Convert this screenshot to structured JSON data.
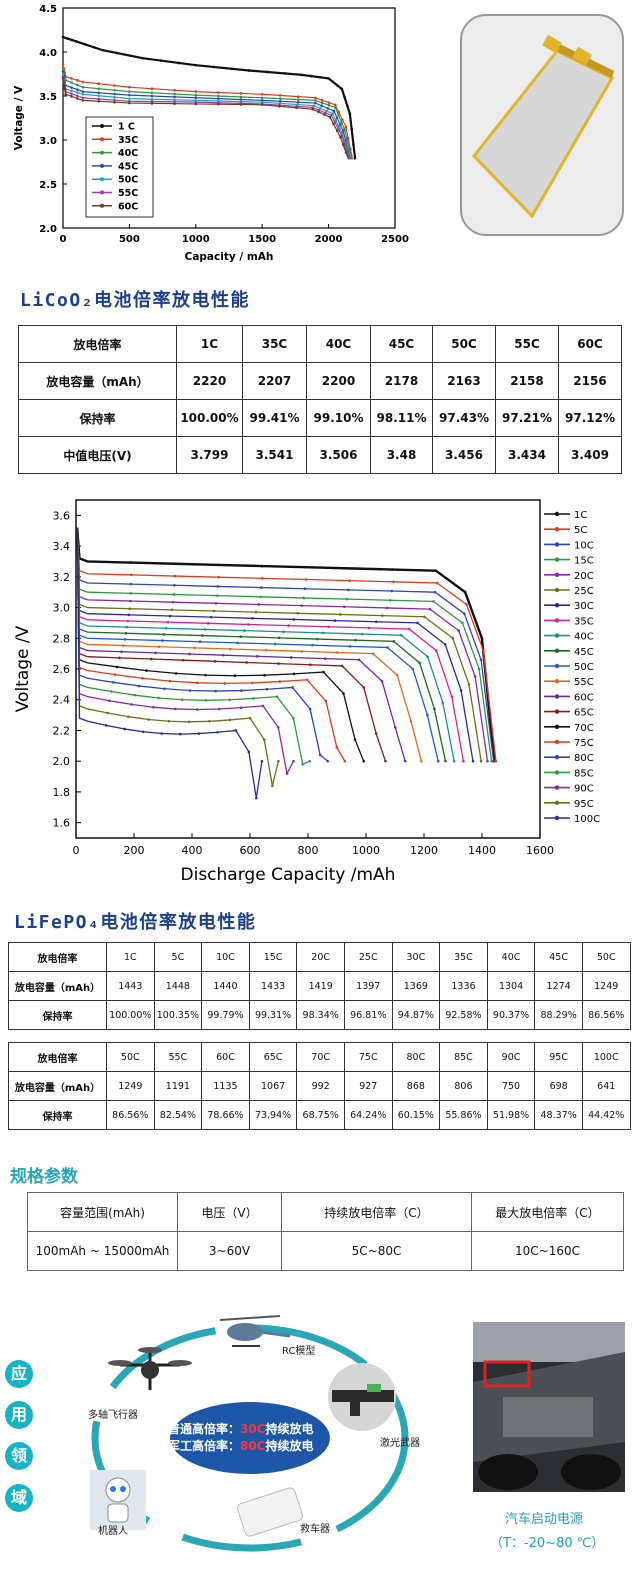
{
  "licoo2": {
    "title": "LiCoO₂电池倍率放电性能",
    "chart_data": {
      "type": "line",
      "xlabel": "Capacity / mAh",
      "ylabel": "Voltage / V",
      "xlim": [
        0,
        2500
      ],
      "ylim": [
        2.0,
        4.5
      ],
      "x_ticks": [
        "0",
        "500",
        "1000",
        "1500",
        "2000",
        "2500"
      ],
      "y_ticks": [
        "2.0",
        "2.5",
        "3.0",
        "3.5",
        "4.0",
        "4.5"
      ],
      "legend_position": "bottom-left",
      "series": [
        {
          "name": "1 C",
          "color": "#111111",
          "points": [
            [
              0,
              4.17
            ],
            [
              100,
              4.12
            ],
            [
              300,
              4.02
            ],
            [
              600,
              3.93
            ],
            [
              1000,
              3.85
            ],
            [
              1400,
              3.79
            ],
            [
              1800,
              3.74
            ],
            [
              2000,
              3.7
            ],
            [
              2100,
              3.58
            ],
            [
              2160,
              3.3
            ],
            [
              2200,
              2.78
            ]
          ]
        },
        {
          "name": "35C",
          "color": "#e03a1e",
          "points": [
            [
              0,
              3.86
            ],
            [
              20,
              3.72
            ],
            [
              150,
              3.66
            ],
            [
              500,
              3.6
            ],
            [
              1000,
              3.55
            ],
            [
              1500,
              3.52
            ],
            [
              1900,
              3.48
            ],
            [
              2050,
              3.4
            ],
            [
              2130,
              3.15
            ],
            [
              2180,
              2.78
            ]
          ]
        },
        {
          "name": "40C",
          "color": "#2f9a3a",
          "points": [
            [
              0,
              3.82
            ],
            [
              20,
              3.68
            ],
            [
              150,
              3.6
            ],
            [
              500,
              3.55
            ],
            [
              1000,
              3.51
            ],
            [
              1500,
              3.48
            ],
            [
              1900,
              3.45
            ],
            [
              2050,
              3.37
            ],
            [
              2120,
              3.12
            ],
            [
              2175,
              2.78
            ]
          ]
        },
        {
          "name": "45C",
          "color": "#2b48b8",
          "points": [
            [
              0,
              3.78
            ],
            [
              20,
              3.62
            ],
            [
              150,
              3.55
            ],
            [
              500,
              3.51
            ],
            [
              1000,
              3.48
            ],
            [
              1500,
              3.45
            ],
            [
              1900,
              3.42
            ],
            [
              2040,
              3.33
            ],
            [
              2110,
              3.1
            ],
            [
              2165,
              2.78
            ]
          ]
        },
        {
          "name": "50C",
          "color": "#22a6b8",
          "points": [
            [
              0,
              3.75
            ],
            [
              20,
              3.58
            ],
            [
              150,
              3.52
            ],
            [
              500,
              3.47
            ],
            [
              1000,
              3.45
            ],
            [
              1500,
              3.43
            ],
            [
              1890,
              3.39
            ],
            [
              2030,
              3.3
            ],
            [
              2100,
              3.08
            ],
            [
              2160,
              2.78
            ]
          ]
        },
        {
          "name": "55C",
          "color": "#a23b98",
          "points": [
            [
              0,
              3.72
            ],
            [
              20,
              3.55
            ],
            [
              150,
              3.48
            ],
            [
              500,
              3.44
            ],
            [
              1000,
              3.43
            ],
            [
              1500,
              3.41
            ],
            [
              1880,
              3.37
            ],
            [
              2020,
              3.28
            ],
            [
              2100,
              3.05
            ],
            [
              2155,
              2.78
            ]
          ]
        },
        {
          "name": "60C",
          "color": "#6b3a1f",
          "points": [
            [
              0,
              3.7
            ],
            [
              20,
              3.52
            ],
            [
              150,
              3.45
            ],
            [
              500,
              3.42
            ],
            [
              1000,
              3.41
            ],
            [
              1500,
              3.4
            ],
            [
              1880,
              3.35
            ],
            [
              2010,
              3.26
            ],
            [
              2090,
              3.03
            ],
            [
              2150,
              2.78
            ]
          ]
        }
      ]
    },
    "table": {
      "headers": [
        "放电倍率",
        "1C",
        "35C",
        "40C",
        "45C",
        "50C",
        "55C",
        "60C"
      ],
      "rows": [
        [
          "放电容量（mAh）",
          "2220",
          "2207",
          "2200",
          "2178",
          "2163",
          "2158",
          "2156"
        ],
        [
          "保持率",
          "100.00%",
          "99.41%",
          "99.10%",
          "98.11%",
          "97.43%",
          "97.21%",
          "97.12%"
        ],
        [
          "中值电压(V)",
          "3.799",
          "3.541",
          "3.506",
          "3.48",
          "3.456",
          "3.434",
          "3.409"
        ]
      ]
    }
  },
  "lifepo4": {
    "title": "LiFePO₄电池倍率放电性能",
    "chart_data": {
      "type": "line",
      "xlabel": "Discharge Capacity /mAh",
      "ylabel": "Voltage /V",
      "xlim": [
        0,
        1600
      ],
      "ylim": [
        1.5,
        3.7
      ],
      "x_ticks": [
        "0",
        "200",
        "400",
        "600",
        "800",
        "1000",
        "1200",
        "1400",
        "1600"
      ],
      "y_ticks": [
        "1.6",
        "1.8",
        "2.0",
        "2.2",
        "2.4",
        "2.6",
        "2.8",
        "3.0",
        "3.2",
        "3.4",
        "3.6"
      ],
      "legend_position": "right",
      "series": [
        {
          "name": "1C",
          "color": "#111111",
          "cap": 1443,
          "plateau": 3.3
        },
        {
          "name": "5C",
          "color": "#e03a1e",
          "cap": 1448,
          "plateau": 3.22
        },
        {
          "name": "10C",
          "color": "#2b48b8",
          "cap": 1440,
          "plateau": 3.16
        },
        {
          "name": "15C",
          "color": "#2f9a3a",
          "cap": 1433,
          "plateau": 3.1
        },
        {
          "name": "20C",
          "color": "#8a2aa0",
          "cap": 1419,
          "plateau": 3.05
        },
        {
          "name": "25C",
          "color": "#6f6f1a",
          "cap": 1397,
          "plateau": 3.0
        },
        {
          "name": "30C",
          "color": "#2a2aa0",
          "cap": 1369,
          "plateau": 2.96
        },
        {
          "name": "35C",
          "color": "#d2219a",
          "cap": 1336,
          "plateau": 2.92
        },
        {
          "name": "40C",
          "color": "#1a8f8f",
          "cap": 1304,
          "plateau": 2.88
        },
        {
          "name": "45C",
          "color": "#1e6a1e",
          "cap": 1274,
          "plateau": 2.84
        },
        {
          "name": "50C",
          "color": "#1f5bd6",
          "cap": 1249,
          "plateau": 2.8
        },
        {
          "name": "55C",
          "color": "#e06a1e",
          "cap": 1191,
          "plateau": 2.76
        },
        {
          "name": "60C",
          "color": "#6a2aa0",
          "cap": 1135,
          "plateau": 2.72
        },
        {
          "name": "65C",
          "color": "#8a1a1a",
          "cap": 1067,
          "plateau": 2.68
        },
        {
          "name": "70C",
          "color": "#111111",
          "cap": 992,
          "plateau": 2.64
        },
        {
          "name": "75C",
          "color": "#e03a1e",
          "cap": 927,
          "plateau": 2.59
        },
        {
          "name": "80C",
          "color": "#2b48b8",
          "cap": 868,
          "plateau": 2.54
        },
        {
          "name": "85C",
          "color": "#2f9a3a",
          "cap": 806,
          "plateau": 2.48
        },
        {
          "name": "90C",
          "color": "#8a2aa0",
          "cap": 750,
          "plateau": 2.42
        },
        {
          "name": "95C",
          "color": "#6f6f1a",
          "cap": 698,
          "plateau": 2.34
        },
        {
          "name": "100C",
          "color": "#2a2aa0",
          "cap": 641,
          "plateau": 2.26
        }
      ]
    },
    "table1": {
      "headers": [
        "放电倍率",
        "1C",
        "5C",
        "10C",
        "15C",
        "20C",
        "25C",
        "30C",
        "35C",
        "40C",
        "45C",
        "50C"
      ],
      "rows": [
        [
          "放电容量（mAh）",
          "1443",
          "1448",
          "1440",
          "1433",
          "1419",
          "1397",
          "1369",
          "1336",
          "1304",
          "1274",
          "1249"
        ],
        [
          "保持率",
          "100.00%",
          "100.35%",
          "99.79%",
          "99.31%",
          "98.34%",
          "96.81%",
          "94.87%",
          "92.58%",
          "90.37%",
          "88.29%",
          "86.56%"
        ]
      ]
    },
    "table2": {
      "headers": [
        "放电倍率",
        "50C",
        "55C",
        "60C",
        "65C",
        "70C",
        "75C",
        "80C",
        "85C",
        "90C",
        "95C",
        "100C"
      ],
      "rows": [
        [
          "放电容量（mAh）",
          "1249",
          "1191",
          "1135",
          "1067",
          "992",
          "927",
          "868",
          "806",
          "750",
          "698",
          "641"
        ],
        [
          "保持率",
          "86.56%",
          "82.54%",
          "78.66%",
          "73.94%",
          "68.75%",
          "64.24%",
          "60.15%",
          "55.86%",
          "51.98%",
          "48.37%",
          "44.42%"
        ]
      ]
    }
  },
  "spec": {
    "title": "规格参数",
    "headers": [
      "容量范围(mAh)",
      "电压（V）",
      "持续放电倍率（C）",
      "最大放电倍率（C）"
    ],
    "row": [
      "100mAh ~ 15000mAh",
      "3~60V",
      "5C~80C",
      "10C~160C"
    ]
  },
  "applications": {
    "side_chars": [
      "应",
      "用",
      "领",
      "域"
    ],
    "labels": {
      "drone": "多轴飞行器",
      "rc": "RC模型",
      "laser": "激光武器",
      "rescue": "救车器",
      "robot": "机器人"
    },
    "center_line1_a": "普通高倍率：",
    "center_line1_hl": "30C",
    "center_line1_b": "持续放电",
    "center_line2_a": "军工高倍率：",
    "center_line2_hl": "80C",
    "center_line2_b": "持续放电",
    "car_caption": "汽车启动电源",
    "car_temp": "（T：-20~80 ℃）",
    "ring_color": "#2aa7b5"
  }
}
